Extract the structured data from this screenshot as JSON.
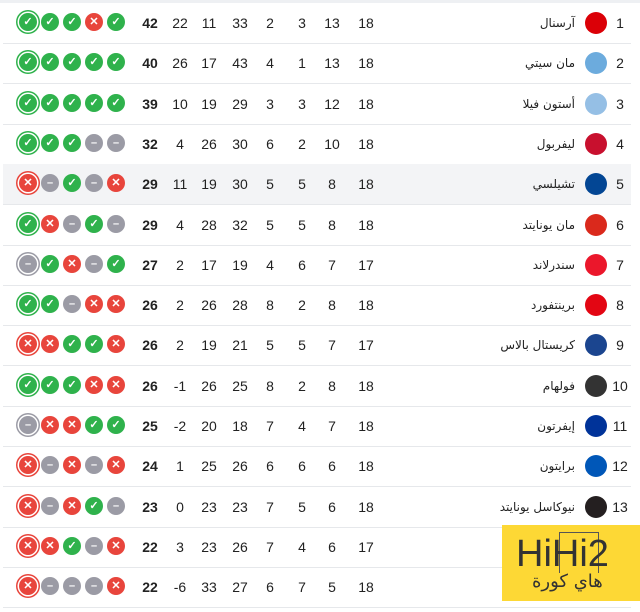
{
  "colors": {
    "win": "#2fb24c",
    "loss": "#e8453c",
    "draw": "#9b9ba5",
    "highlight_row": "#f3f4f6"
  },
  "form_order_note_icons": {
    "W": "check-icon",
    "L": "x-icon",
    "D": "minus-icon"
  },
  "highlighted_rank": 5,
  "rows": [
    {
      "rank": "1",
      "team": "آرسنال",
      "played": "18",
      "won": "13",
      "drawn": "3",
      "lost": "2",
      "gf": "33",
      "ga": "11",
      "gd": "22",
      "pts": "42",
      "form": [
        "W",
        "W",
        "W",
        "L",
        "W"
      ],
      "logo_color": "#db0007"
    },
    {
      "rank": "2",
      "team": "مان سيتي",
      "played": "18",
      "won": "13",
      "drawn": "1",
      "lost": "4",
      "gf": "43",
      "ga": "17",
      "gd": "26",
      "pts": "40",
      "form": [
        "W",
        "W",
        "W",
        "W",
        "W"
      ],
      "logo_color": "#6cabdd"
    },
    {
      "rank": "3",
      "team": "أستون فيلا",
      "played": "18",
      "won": "12",
      "drawn": "3",
      "lost": "3",
      "gf": "29",
      "ga": "19",
      "gd": "10",
      "pts": "39",
      "form": [
        "W",
        "W",
        "W",
        "W",
        "W"
      ],
      "logo_color": "#95bfe5"
    },
    {
      "rank": "4",
      "team": "ليفربول",
      "played": "18",
      "won": "10",
      "drawn": "2",
      "lost": "6",
      "gf": "30",
      "ga": "26",
      "gd": "4",
      "pts": "32",
      "form": [
        "W",
        "W",
        "W",
        "D",
        "D"
      ],
      "logo_color": "#c8102e"
    },
    {
      "rank": "5",
      "team": "تشيلسي",
      "played": "18",
      "won": "8",
      "drawn": "5",
      "lost": "5",
      "gf": "30",
      "ga": "19",
      "gd": "11",
      "pts": "29",
      "form": [
        "L",
        "D",
        "W",
        "D",
        "L"
      ],
      "logo_color": "#034694"
    },
    {
      "rank": "6",
      "team": "مان يونايتد",
      "played": "18",
      "won": "8",
      "drawn": "5",
      "lost": "5",
      "gf": "32",
      "ga": "28",
      "gd": "4",
      "pts": "29",
      "form": [
        "W",
        "L",
        "D",
        "W",
        "D"
      ],
      "logo_color": "#da291c"
    },
    {
      "rank": "7",
      "team": "سندرلاند",
      "played": "17",
      "won": "7",
      "drawn": "6",
      "lost": "4",
      "gf": "19",
      "ga": "17",
      "gd": "2",
      "pts": "27",
      "form": [
        "D",
        "W",
        "L",
        "D",
        "W"
      ],
      "logo_color": "#eb172b"
    },
    {
      "rank": "8",
      "team": "برينتفورد",
      "played": "18",
      "won": "8",
      "drawn": "2",
      "lost": "8",
      "gf": "28",
      "ga": "26",
      "gd": "2",
      "pts": "26",
      "form": [
        "W",
        "W",
        "D",
        "L",
        "L"
      ],
      "logo_color": "#e30613"
    },
    {
      "rank": "9",
      "team": "كريستال بالاس",
      "played": "17",
      "won": "7",
      "drawn": "5",
      "lost": "5",
      "gf": "21",
      "ga": "19",
      "gd": "2",
      "pts": "26",
      "form": [
        "L",
        "L",
        "W",
        "W",
        "L"
      ],
      "logo_color": "#1b458f"
    },
    {
      "rank": "10",
      "team": "فولهام",
      "played": "18",
      "won": "8",
      "drawn": "2",
      "lost": "8",
      "gf": "25",
      "ga": "26",
      "gd": "-1",
      "pts": "26",
      "form": [
        "W",
        "W",
        "W",
        "L",
        "L"
      ],
      "logo_color": "#333333"
    },
    {
      "rank": "11",
      "team": "إيفرتون",
      "played": "18",
      "won": "7",
      "drawn": "4",
      "lost": "7",
      "gf": "18",
      "ga": "20",
      "gd": "-2",
      "pts": "25",
      "form": [
        "D",
        "L",
        "L",
        "W",
        "W"
      ],
      "logo_color": "#003399"
    },
    {
      "rank": "12",
      "team": "برايتون",
      "played": "18",
      "won": "6",
      "drawn": "6",
      "lost": "6",
      "gf": "26",
      "ga": "25",
      "gd": "1",
      "pts": "24",
      "form": [
        "L",
        "D",
        "L",
        "D",
        "L"
      ],
      "logo_color": "#0057b8"
    },
    {
      "rank": "13",
      "team": "نيوكاسل يونايتد",
      "played": "18",
      "won": "6",
      "drawn": "5",
      "lost": "7",
      "gf": "23",
      "ga": "23",
      "gd": "0",
      "pts": "23",
      "form": [
        "L",
        "D",
        "L",
        "W",
        "D"
      ],
      "logo_color": "#241f20"
    },
    {
      "rank": "",
      "team": "",
      "played": "17",
      "won": "6",
      "drawn": "4",
      "lost": "7",
      "gf": "26",
      "ga": "23",
      "gd": "3",
      "pts": "22",
      "form": [
        "L",
        "L",
        "W",
        "D",
        "L"
      ],
      "logo_color": ""
    },
    {
      "rank": "",
      "team": "",
      "played": "18",
      "won": "5",
      "drawn": "7",
      "lost": "6",
      "gf": "27",
      "ga": "33",
      "gd": "-6",
      "pts": "22",
      "form": [
        "L",
        "D",
        "D",
        "D",
        "L"
      ],
      "logo_color": ""
    }
  ],
  "watermark": {
    "brand": "HiHi2",
    "arabic": "هاي كورة"
  }
}
